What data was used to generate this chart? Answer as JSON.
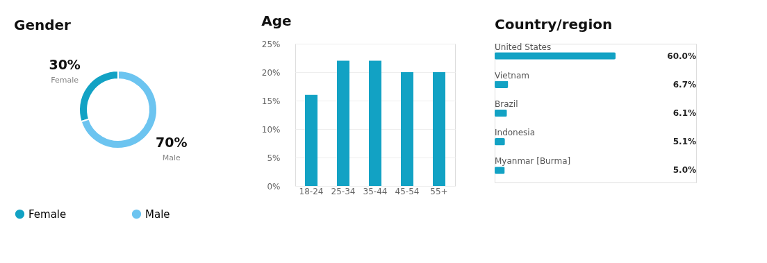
{
  "chart_data": [
    {
      "type": "donut",
      "title": "Gender",
      "categories": [
        "Female",
        "Male"
      ],
      "values": [
        30,
        70
      ],
      "colors": [
        "#12a2c4",
        "#6cc4f0"
      ],
      "value_labels": [
        "30%",
        "70%"
      ],
      "legend": "bottom"
    },
    {
      "type": "bar",
      "title": "Age",
      "categories": [
        "18-24",
        "25-34",
        "35-44",
        "45-54",
        "55+"
      ],
      "values": [
        16,
        22,
        22,
        20,
        20
      ],
      "color": "#12a2c4",
      "ylim": [
        0,
        25
      ],
      "yticks": [
        {
          "value": 0,
          "label": "0%"
        },
        {
          "value": 5,
          "label": "5%"
        },
        {
          "value": 10,
          "label": "10%"
        },
        {
          "value": 15,
          "label": "15%"
        },
        {
          "value": 20,
          "label": "20%"
        },
        {
          "value": 25,
          "label": "25%"
        }
      ],
      "grid": "y"
    },
    {
      "type": "bar",
      "orientation": "horizontal",
      "title": "Country/region",
      "categories": [
        "United States",
        "Vietnam",
        "Brazil",
        "Indonesia",
        "Myanmar [Burma]"
      ],
      "values": [
        60.0,
        6.7,
        6.1,
        5.1,
        5.0
      ],
      "color": "#12a2c4",
      "xlim": [
        0,
        100
      ],
      "value_labels": [
        "60.0%",
        "6.7%",
        "6.1%",
        "5.1%",
        "5.0%"
      ]
    }
  ]
}
